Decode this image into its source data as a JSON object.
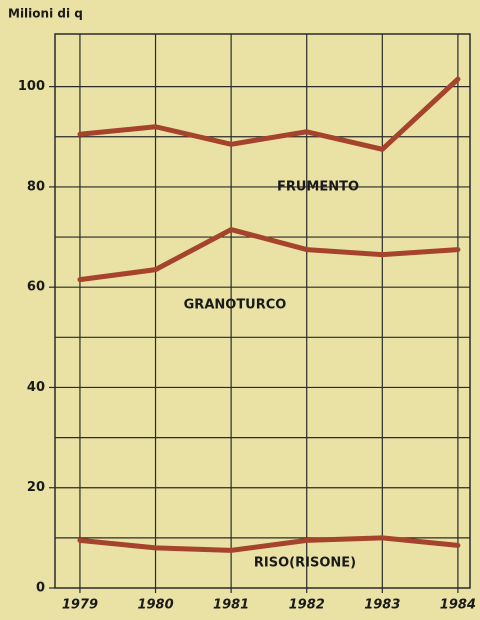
{
  "chart_data": {
    "type": "line",
    "y_axis_label": "Milioni di q",
    "x": [
      1979,
      1980,
      1981,
      1982,
      1983,
      1984
    ],
    "series": [
      {
        "name": "FRUMENTO",
        "color": "#a5432c",
        "values": [
          90.5,
          92,
          88.5,
          91,
          87.5,
          101.5
        ]
      },
      {
        "name": "GRANOTURCO",
        "color": "#a5432c",
        "values": [
          61.5,
          63.5,
          71.5,
          67.5,
          66.5,
          67.5
        ]
      },
      {
        "name": "RISO(RISONE)",
        "color": "#a5432c",
        "values": [
          9.5,
          8,
          7.5,
          9.5,
          10,
          8.5
        ]
      }
    ],
    "xlim": [
      1978.67,
      1984.16
    ],
    "ylim": [
      0,
      110.5
    ],
    "xticks": [
      1979,
      1980,
      1981,
      1982,
      1983,
      1984
    ],
    "yticks": [
      0,
      20,
      40,
      60,
      80,
      100
    ],
    "ygrid": [
      10,
      20,
      30,
      40,
      50,
      60,
      70,
      80,
      90,
      100
    ],
    "grid": true
  }
}
